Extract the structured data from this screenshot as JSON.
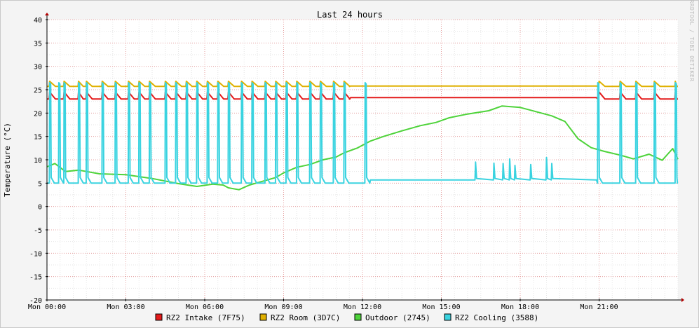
{
  "window": {
    "watermark": "RRDTOOL / TOBI OETIKER"
  },
  "chart_data": {
    "type": "line",
    "title": "Last 24 hours",
    "ylabel": "Temperature (°C)",
    "xlabel": "",
    "ylim": [
      -20,
      40
    ],
    "yticks": [
      40,
      35,
      30,
      25,
      20,
      15,
      10,
      5,
      0,
      -5,
      -10,
      -15,
      -20
    ],
    "x_unit": "hours since Mon 00:00",
    "xlim": [
      0,
      24
    ],
    "xticks": [
      {
        "t": 0,
        "label": "Mon 00:00"
      },
      {
        "t": 3,
        "label": "Mon 03:00"
      },
      {
        "t": 6,
        "label": "Mon 06:00"
      },
      {
        "t": 9,
        "label": "Mon 09:00"
      },
      {
        "t": 12,
        "label": "Mon 12:00"
      },
      {
        "t": 15,
        "label": "Mon 15:00"
      },
      {
        "t": 18,
        "label": "Mon 18:00"
      },
      {
        "t": 21,
        "label": "Mon 21:00"
      }
    ],
    "grid": true,
    "legend_position": "bottom",
    "series": [
      {
        "name": "RZ2 Intake (7F75)",
        "color": "#e41a1a",
        "style": "sawtooth",
        "base": 23.0,
        "peak": 24.5,
        "peak_times": [
          0.1,
          0.65,
          1.2,
          1.5,
          2.1,
          2.6,
          3.1,
          3.5,
          3.9,
          4.5,
          4.9,
          5.3,
          5.7,
          6.1,
          6.5,
          6.9,
          7.4,
          7.8,
          8.3,
          8.7,
          9.1,
          9.5,
          10.0,
          10.4,
          10.9,
          11.3,
          21.0,
          21.8,
          22.4,
          23.1,
          23.9
        ],
        "quiet_range": [
          11.5,
          20.9
        ],
        "quiet_level": 23.3
      },
      {
        "name": "RZ2 Room (3D7C)",
        "color": "#e0b000",
        "style": "sawtooth",
        "base": 25.7,
        "peak": 26.8,
        "peak_times": [
          0.1,
          0.65,
          1.2,
          1.5,
          2.1,
          2.6,
          3.1,
          3.5,
          3.9,
          4.5,
          4.9,
          5.3,
          5.7,
          6.1,
          6.5,
          6.9,
          7.4,
          7.8,
          8.3,
          8.7,
          9.1,
          9.5,
          10.0,
          10.4,
          10.9,
          11.3,
          21.0,
          21.8,
          22.4,
          23.1,
          23.9
        ],
        "quiet_range": [
          11.5,
          20.9
        ],
        "quiet_level": 25.8
      },
      {
        "name": "Outdoor (2745)",
        "color": "#4ed33a",
        "style": "line",
        "points": [
          [
            0,
            8.5
          ],
          [
            0.3,
            9.2
          ],
          [
            0.7,
            7.5
          ],
          [
            1.2,
            7.8
          ],
          [
            2,
            7.0
          ],
          [
            3,
            6.8
          ],
          [
            4,
            6.0
          ],
          [
            5,
            4.9
          ],
          [
            5.7,
            4.3
          ],
          [
            6.3,
            4.8
          ],
          [
            6.7,
            4.6
          ],
          [
            6.9,
            4.0
          ],
          [
            7.3,
            3.6
          ],
          [
            7.7,
            4.6
          ],
          [
            8.2,
            5.4
          ],
          [
            8.7,
            6.2
          ],
          [
            9,
            7.2
          ],
          [
            9.5,
            8.4
          ],
          [
            10,
            9.0
          ],
          [
            10.5,
            10.0
          ],
          [
            11,
            10.6
          ],
          [
            11.3,
            11.5
          ],
          [
            11.8,
            12.5
          ],
          [
            12.3,
            14.0
          ],
          [
            12.8,
            15.0
          ],
          [
            13.5,
            16.2
          ],
          [
            14.2,
            17.3
          ],
          [
            14.8,
            18.0
          ],
          [
            15.3,
            19.0
          ],
          [
            16,
            19.8
          ],
          [
            16.8,
            20.5
          ],
          [
            17.3,
            21.5
          ],
          [
            18,
            21.2
          ],
          [
            18.6,
            20.3
          ],
          [
            19.2,
            19.4
          ],
          [
            19.7,
            18.2
          ],
          [
            20.2,
            14.5
          ],
          [
            20.7,
            12.6
          ],
          [
            21.2,
            11.8
          ],
          [
            21.8,
            11.0
          ],
          [
            22.3,
            10.2
          ],
          [
            22.9,
            11.2
          ],
          [
            23.4,
            9.9
          ],
          [
            23.8,
            12.4
          ],
          [
            24,
            10.1
          ]
        ]
      },
      {
        "name": "RZ2 Cooling (3588)",
        "color": "#3ad3e0",
        "style": "spikes",
        "base": 5.0,
        "peak": 26.5,
        "spike_times": [
          0.1,
          0.45,
          0.65,
          1.2,
          1.5,
          2.1,
          2.6,
          3.1,
          3.5,
          3.9,
          4.5,
          4.9,
          5.3,
          5.7,
          6.1,
          6.5,
          6.9,
          7.4,
          7.8,
          8.3,
          8.7,
          9.1,
          9.5,
          10.0,
          10.4,
          10.9,
          11.3,
          12.1,
          20.95,
          21.8,
          22.4,
          23.1,
          23.9
        ],
        "quiet_range": [
          12.3,
          20.9
        ],
        "quiet_level": 5.7,
        "small_spikes": [
          [
            16.3,
            9.5
          ],
          [
            17.0,
            9.3
          ],
          [
            17.35,
            9.2
          ],
          [
            17.6,
            10.2
          ],
          [
            17.8,
            8.8
          ],
          [
            18.4,
            9.0
          ],
          [
            19.0,
            10.5
          ],
          [
            19.2,
            9.2
          ]
        ]
      }
    ]
  }
}
